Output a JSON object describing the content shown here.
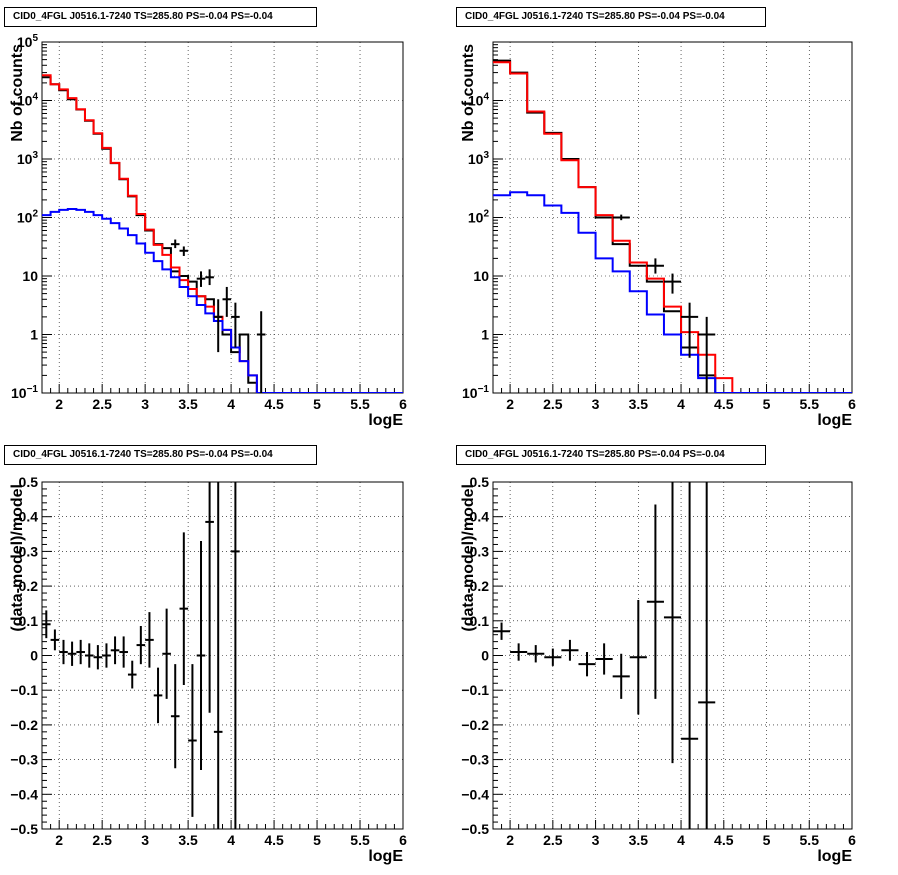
{
  "panels": [
    {
      "id": "top-left",
      "title": "CID0_4FGL J0516.1-7240 TS=285.80 PS=-0.04 PS=-0.04",
      "type": "log",
      "xlabel": "logE",
      "ylabel": "Nb of counts",
      "xlim": [
        1.8,
        6
      ],
      "ylim_log10": [
        -1,
        5
      ],
      "xticks": [
        "2",
        "2.5",
        "3",
        "3.5",
        "4",
        "4.5",
        "5",
        "5.5",
        "6"
      ],
      "yticks": [
        {
          "label": "10^-1",
          "exp": -1
        },
        {
          "label": "1",
          "exp": 0
        },
        {
          "label": "10",
          "exp": 1
        },
        {
          "label": "10^2",
          "exp": 2
        },
        {
          "label": "10^3",
          "exp": 3
        },
        {
          "label": "10^4",
          "exp": 4
        },
        {
          "label": "10^5",
          "exp": 5
        }
      ],
      "series": [
        {
          "color": "#000000",
          "bin_width": 0.1,
          "x0": 1.8,
          "values": [
            25000,
            19000,
            15000,
            10500,
            7000,
            4500,
            2700,
            1500,
            850,
            450,
            230,
            110,
            60,
            35,
            30,
            12,
            10,
            8,
            4.5,
            4,
            2,
            1,
            0.5,
            1,
            0.15,
            0.1
          ]
        },
        {
          "color": "#ff0000",
          "bin_width": 0.1,
          "x0": 1.8,
          "values": [
            27000,
            19000,
            15500,
            11000,
            7100,
            4600,
            2750,
            1550,
            860,
            460,
            235,
            115,
            62,
            34,
            23,
            14,
            8.5,
            6,
            4.5,
            3,
            2,
            1.2,
            0.6,
            0.35,
            0.2,
            0.1,
            0.1
          ]
        },
        {
          "color": "#0000ff",
          "bin_width": 0.1,
          "x0": 1.8,
          "values": [
            110,
            125,
            135,
            140,
            135,
            125,
            110,
            95,
            80,
            65,
            50,
            36,
            25,
            18,
            13,
            9.5,
            6.5,
            4.5,
            3.2,
            2.3,
            1.7,
            1.2,
            0.6,
            0.35,
            0.2,
            0.1,
            0.1
          ]
        }
      ],
      "data_points": [
        {
          "x": 3.35,
          "y": 35,
          "ylo": 30,
          "yhi": 42
        },
        {
          "x": 3.45,
          "y": 27,
          "ylo": 22,
          "yhi": 32
        },
        {
          "x": 3.65,
          "y": 9,
          "ylo": 6.5,
          "yhi": 12
        },
        {
          "x": 3.75,
          "y": 9.5,
          "ylo": 7,
          "yhi": 13
        },
        {
          "x": 3.85,
          "y": 2,
          "ylo": 0.5,
          "yhi": 4
        },
        {
          "x": 3.95,
          "y": 4,
          "ylo": 2,
          "yhi": 6.5
        },
        {
          "x": 4.05,
          "y": 2,
          "ylo": 0.6,
          "yhi": 3.5
        },
        {
          "x": 4.35,
          "y": 1,
          "ylo": 0.1,
          "yhi": 2.5
        }
      ]
    },
    {
      "id": "top-right",
      "title": "CID0_4FGL J0516.1-7240 TS=285.80 PS=-0.04 PS=-0.04",
      "type": "log",
      "xlabel": "logE",
      "ylabel": "Nb of counts",
      "xlim": [
        1.8,
        6
      ],
      "ylim_log10": [
        -1,
        5
      ],
      "xticks": [
        "2",
        "2.5",
        "3",
        "3.5",
        "4",
        "4.5",
        "5",
        "5.5",
        "6"
      ],
      "yticks": [
        {
          "label": "10^-1",
          "exp": -1
        },
        {
          "label": "1",
          "exp": 0
        },
        {
          "label": "10",
          "exp": 1
        },
        {
          "label": "10^2",
          "exp": 2
        },
        {
          "label": "10^3",
          "exp": 3
        },
        {
          "label": "10^4",
          "exp": 4
        }
      ],
      "series": [
        {
          "color": "#000000",
          "bin_width": 0.2,
          "x0": 1.8,
          "values": [
            48000,
            30000,
            6200,
            2800,
            1000,
            330,
            100,
            35,
            15,
            8,
            2.5,
            0.6,
            0.2,
            0.1
          ]
        },
        {
          "color": "#ff0000",
          "bin_width": 0.2,
          "x0": 1.8,
          "values": [
            45000,
            29000,
            6500,
            2700,
            950,
            330,
            110,
            40,
            17,
            9,
            3,
            1.1,
            0.45,
            0.18,
            0.1
          ]
        },
        {
          "color": "#0000ff",
          "bin_width": 0.2,
          "x0": 1.8,
          "values": [
            240,
            270,
            240,
            160,
            120,
            55,
            20,
            12,
            5.5,
            2.2,
            1.0,
            0.45,
            0.18,
            0.1,
            0.1
          ]
        }
      ],
      "data_points": [
        {
          "x": 3.3,
          "y": 100,
          "ylo": 90,
          "yhi": 112
        },
        {
          "x": 3.7,
          "y": 15,
          "ylo": 11,
          "yhi": 20
        },
        {
          "x": 3.9,
          "y": 8,
          "ylo": 5,
          "yhi": 11
        },
        {
          "x": 4.1,
          "y": 2,
          "ylo": 0.4,
          "yhi": 3.5
        },
        {
          "x": 4.3,
          "y": 1,
          "ylo": 0.1,
          "yhi": 2
        }
      ]
    },
    {
      "id": "bottom-left",
      "title": "CID0_4FGL J0516.1-7240 TS=285.80 PS=-0.04 PS=-0.04",
      "type": "linear",
      "xlabel": "logE",
      "ylabel": "(data-model)/model",
      "xlim": [
        1.8,
        6
      ],
      "ylim": [
        -0.5,
        0.5
      ],
      "xticks": [
        "2",
        "2.5",
        "3",
        "3.5",
        "4",
        "4.5",
        "5",
        "5.5",
        "6"
      ],
      "yticks": [
        "−0.5",
        "−0.4",
        "−0.3",
        "−0.2",
        "−0.1",
        "0",
        "0.1",
        "0.2",
        "0.3",
        "0.4",
        "0.5"
      ],
      "points": [
        {
          "x": 1.85,
          "y": 0.09,
          "err": 0.04
        },
        {
          "x": 1.95,
          "y": 0.045,
          "err": 0.03
        },
        {
          "x": 2.05,
          "y": 0.01,
          "err": 0.035
        },
        {
          "x": 2.15,
          "y": 0.005,
          "err": 0.035
        },
        {
          "x": 2.25,
          "y": 0.01,
          "err": 0.035
        },
        {
          "x": 2.35,
          "y": 0.0,
          "err": 0.035
        },
        {
          "x": 2.45,
          "y": -0.005,
          "err": 0.035
        },
        {
          "x": 2.55,
          "y": 0.0,
          "err": 0.035
        },
        {
          "x": 2.65,
          "y": 0.015,
          "err": 0.04
        },
        {
          "x": 2.75,
          "y": 0.01,
          "err": 0.045
        },
        {
          "x": 2.85,
          "y": -0.055,
          "err": 0.04
        },
        {
          "x": 2.95,
          "y": 0.03,
          "err": 0.055
        },
        {
          "x": 3.05,
          "y": 0.045,
          "err": 0.08
        },
        {
          "x": 3.15,
          "y": -0.115,
          "err": 0.08
        },
        {
          "x": 3.25,
          "y": 0.005,
          "err": 0.13
        },
        {
          "x": 3.35,
          "y": -0.175,
          "err": 0.15
        },
        {
          "x": 3.45,
          "y": 0.135,
          "err": 0.22
        },
        {
          "x": 3.55,
          "y": -0.245,
          "err": 0.22
        },
        {
          "x": 3.65,
          "y": 0.0,
          "err": 0.33
        },
        {
          "x": 3.75,
          "y": 0.385,
          "err": 0.55
        },
        {
          "x": 3.85,
          "y": -0.22,
          "err": 0.72
        },
        {
          "x": 4.05,
          "y": 0.3,
          "err": 1.0
        }
      ]
    },
    {
      "id": "bottom-right",
      "title": "CID0_4FGL J0516.1-7240 TS=285.80 PS=-0.04 PS=-0.04",
      "type": "linear",
      "xlabel": "logE",
      "ylabel": "(data-model)/model",
      "xlim": [
        1.8,
        6
      ],
      "ylim": [
        -0.5,
        0.5
      ],
      "xticks": [
        "2",
        "2.5",
        "3",
        "3.5",
        "4",
        "4.5",
        "5",
        "5.5",
        "6"
      ],
      "yticks": [
        "−0.5",
        "−0.4",
        "−0.3",
        "−0.2",
        "−0.1",
        "0",
        "0.1",
        "0.2",
        "0.3",
        "0.4",
        "0.5"
      ],
      "points": [
        {
          "x": 1.9,
          "y": 0.07,
          "err": 0.025
        },
        {
          "x": 2.1,
          "y": 0.01,
          "err": 0.025
        },
        {
          "x": 2.3,
          "y": 0.005,
          "err": 0.025
        },
        {
          "x": 2.5,
          "y": -0.005,
          "err": 0.025
        },
        {
          "x": 2.7,
          "y": 0.015,
          "err": 0.03
        },
        {
          "x": 2.9,
          "y": -0.025,
          "err": 0.035
        },
        {
          "x": 3.1,
          "y": -0.01,
          "err": 0.045
        },
        {
          "x": 3.3,
          "y": -0.06,
          "err": 0.065
        },
        {
          "x": 3.5,
          "y": -0.005,
          "err": 0.165
        },
        {
          "x": 3.7,
          "y": 0.155,
          "err": 0.28
        },
        {
          "x": 3.9,
          "y": 0.11,
          "err": 0.42
        },
        {
          "x": 4.1,
          "y": -0.24,
          "err": 1.0
        },
        {
          "x": 4.3,
          "y": -0.135,
          "err": 1.0
        }
      ]
    }
  ]
}
